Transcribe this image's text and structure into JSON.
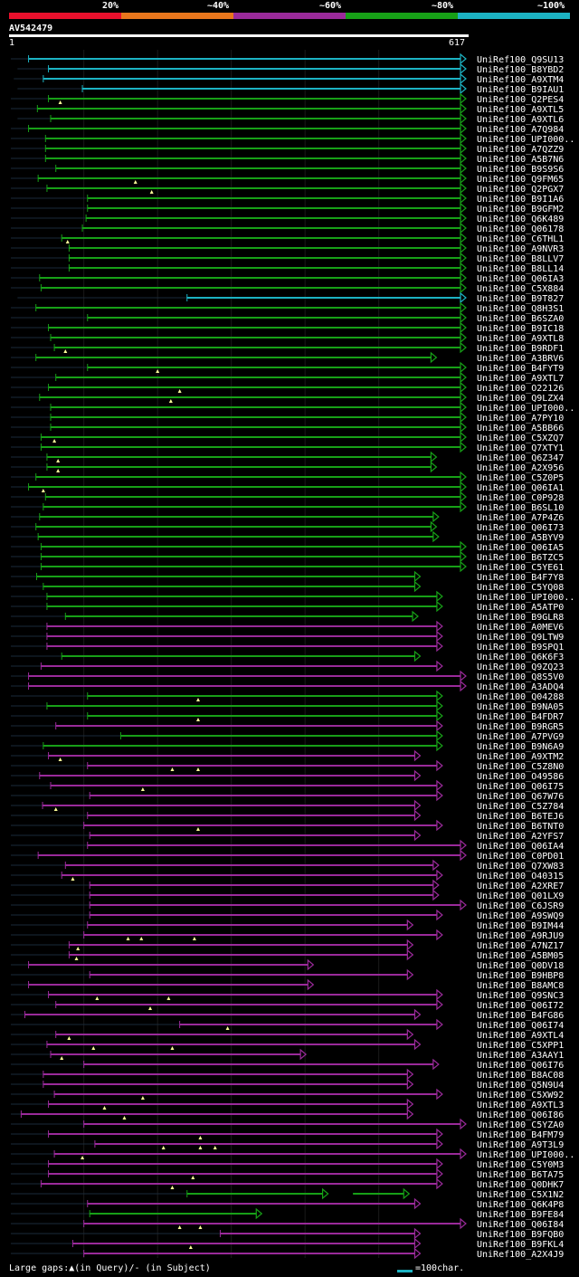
{
  "query": {
    "name": "AV542479",
    "start": "1",
    "end": "617",
    "length": 617
  },
  "legend": {
    "labels": [
      "20%",
      "~40%",
      "~60%",
      "~80%",
      "~100%"
    ],
    "colors": [
      "#e8102c",
      "#e8761c",
      "#9a2a9a",
      "#17a017",
      "#1cb3c3"
    ]
  },
  "footer": {
    "gaps_text": "Large gaps:▲(in Query)/- (in Subject)",
    "scale_text": "=100char."
  },
  "colors": {
    "cyan": "#1cb3c3",
    "green": "#17a017",
    "purple": "#9a2a9a"
  },
  "chart_data": {
    "type": "alignment",
    "title": "AV542479",
    "x_range": [
      1,
      617
    ],
    "rows": [
      {
        "label": "UniRef100_Q9SU13",
        "color": "cyan",
        "start": 25,
        "end": 617,
        "lstart": 1
      },
      {
        "label": "UniRef100_B8YBD2",
        "color": "cyan",
        "start": 52,
        "end": 617,
        "lstart": 10
      },
      {
        "label": "UniRef100_A9XTM4",
        "color": "cyan",
        "start": 45,
        "end": 617,
        "lstart": 5
      },
      {
        "label": "UniRef100_B9IAU1",
        "color": "cyan",
        "start": 98,
        "end": 617,
        "lstart": 10
      },
      {
        "label": "UniRef100_Q2PES4",
        "color": "green",
        "start": 52,
        "end": 617,
        "lstart": 1,
        "q": [
          68
        ]
      },
      {
        "label": "UniRef100_A9XTL5",
        "color": "green",
        "start": 37,
        "end": 617,
        "lstart": 1
      },
      {
        "label": "UniRef100_A9XTL6",
        "color": "green",
        "start": 55,
        "end": 617,
        "lstart": 10
      },
      {
        "label": "UniRef100_A7Q984",
        "color": "green",
        "start": 25,
        "end": 617,
        "lstart": 1
      },
      {
        "label": "UniRef100_UPI000..",
        "color": "green",
        "start": 48,
        "end": 617,
        "lstart": 1
      },
      {
        "label": "UniRef100_A7QZZ9",
        "color": "green",
        "start": 48,
        "end": 617,
        "lstart": 1
      },
      {
        "label": "UniRef100_A5B7N6",
        "color": "green",
        "start": 48,
        "end": 617,
        "lstart": 1
      },
      {
        "label": "UniRef100_B9S9S6",
        "color": "green",
        "start": 62,
        "end": 617,
        "lstart": 1
      },
      {
        "label": "UniRef100_Q9FM65",
        "color": "green",
        "start": 38,
        "end": 617,
        "lstart": 1,
        "q": [
          170
        ]
      },
      {
        "label": "UniRef100_Q2PGX7",
        "color": "green",
        "start": 50,
        "end": 617,
        "lstart": 1,
        "q": [
          192
        ]
      },
      {
        "label": "UniRef100_B9I1A6",
        "color": "green",
        "start": 105,
        "end": 617,
        "lstart": 1
      },
      {
        "label": "UniRef100_B9GFM2",
        "color": "green",
        "start": 105,
        "end": 617,
        "lstart": 1
      },
      {
        "label": "UniRef100_Q6K489",
        "color": "green",
        "start": 103,
        "end": 617,
        "lstart": 1
      },
      {
        "label": "UniRef100_Q06178",
        "color": "green",
        "start": 98,
        "end": 617,
        "lstart": 1
      },
      {
        "label": "UniRef100_C6THL1",
        "color": "green",
        "start": 70,
        "end": 617,
        "lstart": 1,
        "q": [
          78
        ]
      },
      {
        "label": "UniRef100_A9NVR3",
        "color": "green",
        "start": 80,
        "end": 617,
        "lstart": 1
      },
      {
        "label": "UniRef100_B8LLV7",
        "color": "green",
        "start": 80,
        "end": 617,
        "lstart": 1
      },
      {
        "label": "UniRef100_B8LL14",
        "color": "green",
        "start": 80,
        "end": 617,
        "lstart": 1
      },
      {
        "label": "UniRef100_Q06IA3",
        "color": "green",
        "start": 40,
        "end": 617,
        "lstart": 1
      },
      {
        "label": "UniRef100_C5X884",
        "color": "green",
        "start": 42,
        "end": 617,
        "lstart": 1
      },
      {
        "label": "UniRef100_B9T827",
        "color": "cyan",
        "start": 240,
        "end": 617,
        "lstart": 10
      },
      {
        "label": "UniRef100_Q8H3S1",
        "color": "green",
        "start": 35,
        "end": 617,
        "lstart": 1
      },
      {
        "label": "UniRef100_B6SZA0",
        "color": "green",
        "start": 105,
        "end": 617,
        "lstart": 1
      },
      {
        "label": "UniRef100_B9IC18",
        "color": "green",
        "start": 52,
        "end": 617,
        "lstart": 1
      },
      {
        "label": "UniRef100_A9XTL8",
        "color": "green",
        "start": 55,
        "end": 617,
        "lstart": 1
      },
      {
        "label": "UniRef100_B9RDF1",
        "color": "green",
        "start": 60,
        "end": 617,
        "lstart": 1,
        "q": [
          75
        ]
      },
      {
        "label": "UniRef100_A3BRV6",
        "color": "green",
        "start": 35,
        "end": 577,
        "lstart": 1
      },
      {
        "label": "UniRef100_B4FYT9",
        "color": "green",
        "start": 105,
        "end": 617,
        "lstart": 1,
        "q": [
          200
        ]
      },
      {
        "label": "UniRef100_A9XTL7",
        "color": "green",
        "start": 62,
        "end": 617,
        "lstart": 1
      },
      {
        "label": "UniRef100_O22126",
        "color": "green",
        "start": 52,
        "end": 617,
        "lstart": 1,
        "q": [
          230
        ]
      },
      {
        "label": "UniRef100_Q9LZX4",
        "color": "green",
        "start": 40,
        "end": 617,
        "lstart": 1,
        "q": [
          218
        ]
      },
      {
        "label": "UniRef100_UPI000..",
        "color": "green",
        "start": 55,
        "end": 617,
        "lstart": 1
      },
      {
        "label": "UniRef100_A7PY10",
        "color": "green",
        "start": 55,
        "end": 617,
        "lstart": 1
      },
      {
        "label": "UniRef100_A5BB66",
        "color": "green",
        "start": 55,
        "end": 617,
        "lstart": 1
      },
      {
        "label": "UniRef100_C5XZQ7",
        "color": "green",
        "start": 42,
        "end": 617,
        "lstart": 1,
        "q": [
          60
        ]
      },
      {
        "label": "UniRef100_Q7XTY1",
        "color": "green",
        "start": 42,
        "end": 617,
        "lstart": 1
      },
      {
        "label": "UniRef100_Q6Z347",
        "color": "green",
        "start": 50,
        "end": 577,
        "lstart": 1,
        "q": [
          65
        ]
      },
      {
        "label": "UniRef100_A2X956",
        "color": "green",
        "start": 50,
        "end": 577,
        "lstart": 1,
        "q": [
          65
        ]
      },
      {
        "label": "UniRef100_C5Z0P5",
        "color": "green",
        "start": 35,
        "end": 617,
        "lstart": 1
      },
      {
        "label": "UniRef100_Q06IA1",
        "color": "green",
        "start": 25,
        "end": 617,
        "lstart": 1,
        "q": [
          45
        ]
      },
      {
        "label": "UniRef100_C0P928",
        "color": "green",
        "start": 48,
        "end": 617,
        "lstart": 1
      },
      {
        "label": "UniRef100_B6SL10",
        "color": "green",
        "start": 45,
        "end": 617,
        "lstart": 1
      },
      {
        "label": "UniRef100_A7P4Z6",
        "color": "green",
        "start": 40,
        "end": 580,
        "lstart": 1
      },
      {
        "label": "UniRef100_Q06I73",
        "color": "green",
        "start": 35,
        "end": 577,
        "lstart": 1
      },
      {
        "label": "UniRef100_A5BYV9",
        "color": "green",
        "start": 38,
        "end": 580,
        "lstart": 1
      },
      {
        "label": "UniRef100_Q06IA5",
        "color": "green",
        "start": 42,
        "end": 617,
        "lstart": 1
      },
      {
        "label": "UniRef100_B6TZC5",
        "color": "green",
        "start": 42,
        "end": 617,
        "lstart": 1
      },
      {
        "label": "UniRef100_C5YE61",
        "color": "green",
        "start": 42,
        "end": 617,
        "lstart": 1
      },
      {
        "label": "UniRef100_B4F7Y8",
        "color": "green",
        "start": 36,
        "end": 555,
        "lstart": 1
      },
      {
        "label": "UniRef100_C5YQ08",
        "color": "green",
        "start": 45,
        "end": 555,
        "lstart": 1
      },
      {
        "label": "UniRef100_UPI000..",
        "color": "green",
        "start": 50,
        "end": 585,
        "lstart": 1
      },
      {
        "label": "UniRef100_A5ATP0",
        "color": "green",
        "start": 50,
        "end": 585,
        "lstart": 1
      },
      {
        "label": "UniRef100_B9GLR8",
        "color": "green",
        "start": 75,
        "end": 552,
        "lstart": 1
      },
      {
        "label": "UniRef100_A0MEV6",
        "color": "purple",
        "start": 50,
        "end": 585,
        "lstart": 1
      },
      {
        "label": "UniRef100_Q9LTW9",
        "color": "purple",
        "start": 50,
        "end": 585,
        "lstart": 1
      },
      {
        "label": "UniRef100_B9SPQ1",
        "color": "purple",
        "start": 50,
        "end": 585,
        "lstart": 1
      },
      {
        "label": "UniRef100_Q6K6F3",
        "color": "green",
        "start": 70,
        "end": 555,
        "lstart": 1
      },
      {
        "label": "UniRef100_Q9ZQ23",
        "color": "purple",
        "start": 42,
        "end": 585,
        "lstart": 1
      },
      {
        "label": "UniRef100_Q8S5V0",
        "color": "purple",
        "start": 25,
        "end": 617,
        "lstart": 1
      },
      {
        "label": "UniRef100_A3ADQ4",
        "color": "purple",
        "start": 25,
        "end": 617,
        "lstart": 1
      },
      {
        "label": "UniRef100_Q04288",
        "color": "green",
        "start": 105,
        "end": 585,
        "lstart": 1,
        "q": [
          255
        ]
      },
      {
        "label": "UniRef100_B9NA05",
        "color": "green",
        "start": 50,
        "end": 585,
        "lstart": 1
      },
      {
        "label": "UniRef100_B4FDR7",
        "color": "green",
        "start": 105,
        "end": 585,
        "lstart": 1,
        "q": [
          255
        ]
      },
      {
        "label": "UniRef100_B9RGR5",
        "color": "purple",
        "start": 62,
        "end": 585,
        "lstart": 1
      },
      {
        "label": "UniRef100_A7PVG9",
        "color": "green",
        "start": 150,
        "end": 585,
        "lstart": 1
      },
      {
        "label": "UniRef100_B9N6A9",
        "color": "green",
        "start": 45,
        "end": 585,
        "lstart": 1
      },
      {
        "label": "UniRef100_A9XTM2",
        "color": "purple",
        "start": 52,
        "end": 555,
        "lstart": 1,
        "q": [
          68
        ]
      },
      {
        "label": "UniRef100_C5Z8N0",
        "color": "purple",
        "start": 105,
        "end": 585,
        "lstart": 1,
        "q": [
          220,
          255
        ]
      },
      {
        "label": "UniRef100_O49586",
        "color": "purple",
        "start": 40,
        "end": 555,
        "lstart": 1
      },
      {
        "label": "UniRef100_Q06I75",
        "color": "purple",
        "start": 55,
        "end": 585,
        "lstart": 1,
        "q": [
          180
        ]
      },
      {
        "label": "UniRef100_Q67W76",
        "color": "purple",
        "start": 108,
        "end": 585,
        "lstart": 1
      },
      {
        "label": "UniRef100_C5Z784",
        "color": "purple",
        "start": 44,
        "end": 555,
        "lstart": 1,
        "q": [
          62
        ]
      },
      {
        "label": "UniRef100_B6TEJ6",
        "color": "purple",
        "start": 105,
        "end": 555,
        "lstart": 1
      },
      {
        "label": "UniRef100_B6TNT0",
        "color": "purple",
        "start": 100,
        "end": 585,
        "lstart": 1,
        "q": [
          255
        ]
      },
      {
        "label": "UniRef100_A2YFS7",
        "color": "purple",
        "start": 108,
        "end": 555,
        "lstart": 1
      },
      {
        "label": "UniRef100_Q06IA4",
        "color": "purple",
        "start": 105,
        "end": 617,
        "lstart": 1
      },
      {
        "label": "UniRef100_C0PD01",
        "color": "purple",
        "start": 38,
        "end": 617,
        "lstart": 1
      },
      {
        "label": "UniRef100_Q7XW83",
        "color": "purple",
        "start": 75,
        "end": 580,
        "lstart": 1
      },
      {
        "label": "UniRef100_O40315",
        "color": "purple",
        "start": 70,
        "end": 585,
        "lstart": 1,
        "q": [
          85
        ]
      },
      {
        "label": "UniRef100_A2XRE7",
        "color": "purple",
        "start": 108,
        "end": 580,
        "lstart": 1
      },
      {
        "label": "UniRef100_Q01LX9",
        "color": "purple",
        "start": 108,
        "end": 580,
        "lstart": 1
      },
      {
        "label": "UniRef100_C6JSR9",
        "color": "purple",
        "start": 108,
        "end": 617,
        "lstart": 1
      },
      {
        "label": "UniRef100_A9SWQ9",
        "color": "purple",
        "start": 108,
        "end": 585,
        "lstart": 1
      },
      {
        "label": "UniRef100_B9IM44",
        "color": "purple",
        "start": 105,
        "end": 545,
        "lstart": 1
      },
      {
        "label": "UniRef100_A9RJU9",
        "color": "purple",
        "start": 100,
        "end": 585,
        "lstart": 1,
        "q": [
          160,
          178,
          250
        ]
      },
      {
        "label": "UniRef100_A7NZ17",
        "color": "purple",
        "start": 80,
        "end": 545,
        "lstart": 1,
        "q": [
          92
        ]
      },
      {
        "label": "UniRef100_A5BM05",
        "color": "purple",
        "start": 80,
        "end": 545,
        "lstart": 1,
        "q": [
          90
        ]
      },
      {
        "label": "UniRef100_Q0DV18",
        "color": "purple",
        "start": 25,
        "end": 410,
        "lstart": 1
      },
      {
        "label": "UniRef100_B9HBP8",
        "color": "purple",
        "start": 108,
        "end": 545,
        "lstart": 1
      },
      {
        "label": "UniRef100_B8AMC8",
        "color": "purple",
        "start": 25,
        "end": 410,
        "lstart": 1
      },
      {
        "label": "UniRef100_Q9SNC3",
        "color": "purple",
        "start": 52,
        "end": 585,
        "lstart": 1,
        "q": [
          118,
          215
        ]
      },
      {
        "label": "UniRef100_Q06I72",
        "color": "purple",
        "start": 62,
        "end": 585,
        "lstart": 1,
        "q": [
          190
        ]
      },
      {
        "label": "UniRef100_B4FG86",
        "color": "purple",
        "start": 20,
        "end": 555,
        "lstart": 1
      },
      {
        "label": "UniRef100_Q06I74",
        "color": "purple",
        "start": 230,
        "end": 585,
        "lstart": 1,
        "q": [
          295
        ]
      },
      {
        "label": "UniRef100_A9XTL4",
        "color": "purple",
        "start": 62,
        "end": 545,
        "lstart": 1,
        "q": [
          80
        ]
      },
      {
        "label": "UniRef100_C5XPP1",
        "color": "purple",
        "start": 50,
        "end": 555,
        "lstart": 1,
        "q": [
          113,
          220
        ]
      },
      {
        "label": "UniRef100_A3AAY1",
        "color": "purple",
        "start": 55,
        "end": 400,
        "lstart": 1,
        "q": [
          70
        ]
      },
      {
        "label": "UniRef100_Q06I76",
        "color": "purple",
        "start": 100,
        "end": 580,
        "lstart": 1
      },
      {
        "label": "UniRef100_B8AC08",
        "color": "purple",
        "start": 45,
        "end": 545,
        "lstart": 1
      },
      {
        "label": "UniRef100_Q5N9U4",
        "color": "purple",
        "start": 45,
        "end": 545,
        "lstart": 1
      },
      {
        "label": "UniRef100_C5XW92",
        "color": "purple",
        "start": 60,
        "end": 585,
        "lstart": 1,
        "q": [
          180
        ]
      },
      {
        "label": "UniRef100_A9XTL3",
        "color": "purple",
        "start": 52,
        "end": 545,
        "lstart": 1,
        "q": [
          128
        ]
      },
      {
        "label": "UniRef100_Q06I86",
        "color": "purple",
        "start": 15,
        "end": 545,
        "lstart": 1,
        "q": [
          155
        ]
      },
      {
        "label": "UniRef100_C5YZA0",
        "color": "purple",
        "start": 100,
        "end": 617,
        "lstart": 1
      },
      {
        "label": "UniRef100_B4FM79",
        "color": "purple",
        "start": 52,
        "end": 585,
        "lstart": 1,
        "q": [
          258
        ]
      },
      {
        "label": "UniRef100_A9T3L9",
        "color": "purple",
        "start": 115,
        "end": 585,
        "lstart": 1,
        "q": [
          208,
          258,
          278
        ]
      },
      {
        "label": "UniRef100_UPI000..",
        "color": "purple",
        "start": 60,
        "end": 617,
        "lstart": 1,
        "q": [
          98
        ]
      },
      {
        "label": "UniRef100_C5Y0M3",
        "color": "purple",
        "start": 52,
        "end": 585,
        "lstart": 1
      },
      {
        "label": "UniRef100_B6TA75",
        "color": "purple",
        "start": 52,
        "end": 585,
        "lstart": 1,
        "q": [
          248
        ]
      },
      {
        "label": "UniRef100_Q0DHK7",
        "color": "purple",
        "start": 42,
        "end": 585,
        "lstart": 1,
        "q": [
          220
        ]
      },
      {
        "label": "UniRef100_C5X1N2",
        "color": "green",
        "start": 240,
        "end": 430,
        "lstart": 1,
        "extra": {
          "start": 465,
          "end": 540
        }
      },
      {
        "label": "UniRef100_Q6K4P8",
        "color": "purple",
        "start": 105,
        "end": 555,
        "lstart": 1
      },
      {
        "label": "UniRef100_B9FE84",
        "color": "green",
        "start": 108,
        "end": 340,
        "lstart": 1
      },
      {
        "label": "UniRef100_Q06I84",
        "color": "purple",
        "start": 100,
        "end": 617,
        "lstart": 1,
        "q": [
          230,
          258
        ]
      },
      {
        "label": "UniRef100_B9FQB0",
        "color": "purple",
        "start": 285,
        "end": 555,
        "lstart": 1
      },
      {
        "label": "UniRef100_B9FKL4",
        "color": "purple",
        "start": 85,
        "end": 555,
        "lstart": 1,
        "q": [
          245
        ]
      },
      {
        "label": "UniRef100_A2X4J9",
        "color": "purple",
        "start": 100,
        "end": 555,
        "lstart": 1
      }
    ]
  }
}
